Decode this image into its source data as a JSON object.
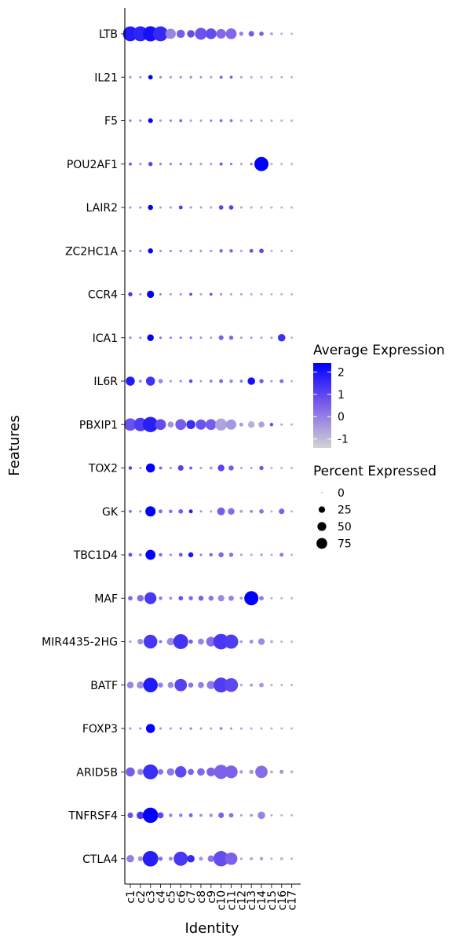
{
  "chart_data": {
    "type": "dotplot",
    "xlabel": "Identity",
    "ylabel": "Features",
    "clusters": [
      "c1",
      "c2",
      "c3",
      "c4",
      "c5",
      "c6",
      "c7",
      "c8",
      "c9",
      "c10",
      "c11",
      "c12",
      "c13",
      "c14",
      "c15",
      "c16",
      "c17"
    ],
    "features": [
      "LTB",
      "IL21",
      "F5",
      "POU2AF1",
      "LAIR2",
      "ZC2HC1A",
      "CCR4",
      "ICA1",
      "IL6R",
      "PBXIP1",
      "TOX2",
      "GK",
      "TBC1D4",
      "MAF",
      "MIR4435-2HG",
      "BATF",
      "FOXP3",
      "ARID5B",
      "TNFRSF4",
      "CTLA4"
    ],
    "color_legend": {
      "title": "Average Expression",
      "ticks": [
        2,
        1,
        0,
        -1
      ],
      "low_color": "#d3d3d3",
      "high_color": "#0000ff",
      "range": [
        -1.4,
        2.4
      ]
    },
    "size_legend": {
      "title": "Percent Expressed",
      "ticks": [
        0,
        25,
        50,
        75
      ]
    },
    "rows": [
      {
        "feature": "LTB",
        "pct": [
          88,
          90,
          92,
          90,
          40,
          25,
          20,
          55,
          45,
          35,
          45,
          5,
          10,
          6,
          2,
          1,
          1
        ],
        "avg": [
          1.9,
          1.7,
          2.1,
          1.6,
          -0.1,
          0.6,
          0.9,
          0.8,
          0.9,
          0.4,
          0.4,
          -0.1,
          0.6,
          0.5,
          -0.6,
          -0.8,
          -0.9
        ]
      },
      {
        "feature": "IL21",
        "pct": [
          1,
          1,
          6,
          1,
          1,
          1,
          1,
          1,
          1,
          2,
          2,
          1,
          1,
          1,
          1,
          1,
          1
        ],
        "avg": [
          -0.1,
          -0.3,
          2.4,
          0.0,
          -0.3,
          -0.1,
          0.1,
          -0.3,
          -0.5,
          0.5,
          0.6,
          -0.5,
          -0.6,
          -0.8,
          -0.7,
          -0.9,
          -0.9
        ]
      },
      {
        "feature": "F5",
        "pct": [
          1,
          1,
          7,
          1,
          1,
          2,
          1,
          1,
          1,
          2,
          2,
          1,
          1,
          1,
          1,
          1,
          1
        ],
        "avg": [
          0.3,
          -0.3,
          2.4,
          -0.5,
          0.1,
          0.4,
          -0.5,
          -0.5,
          0.0,
          0.3,
          0.1,
          -0.6,
          -0.4,
          -0.8,
          -0.8,
          -0.9,
          -0.9
        ]
      },
      {
        "feature": "POU2AF1",
        "pct": [
          2,
          1,
          5,
          1,
          1,
          1,
          1,
          1,
          1,
          2,
          1,
          1,
          1,
          80,
          1,
          1,
          1
        ],
        "avg": [
          0.7,
          -0.3,
          1.1,
          0.1,
          0.1,
          0.2,
          -0.1,
          -0.4,
          -0.5,
          0.8,
          0.3,
          -0.6,
          0.6,
          2.4,
          -0.8,
          -0.9,
          -0.9
        ]
      },
      {
        "feature": "LAIR2",
        "pct": [
          1,
          1,
          8,
          1,
          1,
          4,
          1,
          1,
          1,
          6,
          6,
          1,
          1,
          1,
          1,
          1,
          1
        ],
        "avg": [
          -0.3,
          -0.3,
          2.4,
          -0.5,
          -0.4,
          1.2,
          -0.3,
          -0.5,
          -0.6,
          1.0,
          1.1,
          -0.6,
          -0.7,
          -0.8,
          -0.8,
          -0.9,
          -0.9
        ]
      },
      {
        "feature": "ZC2HC1A",
        "pct": [
          1,
          1,
          8,
          1,
          1,
          1,
          1,
          1,
          1,
          3,
          3,
          1,
          4,
          6,
          1,
          1,
          1
        ],
        "avg": [
          0.2,
          -0.3,
          2.4,
          -0.2,
          0.0,
          0.0,
          0.0,
          -0.3,
          -0.3,
          0.3,
          0.3,
          -0.5,
          0.7,
          1.0,
          -0.8,
          -0.9,
          -0.9
        ]
      },
      {
        "feature": "CCR4",
        "pct": [
          5,
          1,
          18,
          1,
          1,
          1,
          2,
          1,
          2,
          1,
          1,
          1,
          1,
          1,
          1,
          1,
          1
        ],
        "avg": [
          1.3,
          -0.3,
          2.4,
          -0.1,
          -0.5,
          -0.3,
          1.0,
          -0.6,
          0.7,
          -0.2,
          -0.6,
          -0.6,
          -0.8,
          -0.8,
          -0.9,
          -0.9,
          -0.9
        ]
      },
      {
        "feature": "ICA1",
        "pct": [
          1,
          1,
          15,
          1,
          1,
          1,
          1,
          1,
          1,
          7,
          5,
          1,
          1,
          1,
          1,
          20,
          1
        ],
        "avg": [
          0.0,
          -0.3,
          2.4,
          0.3,
          0.0,
          0.2,
          0.5,
          -0.3,
          -0.6,
          0.5,
          0.4,
          -0.5,
          -0.4,
          -0.6,
          -0.4,
          1.5,
          -0.9
        ]
      },
      {
        "feature": "IL6R",
        "pct": [
          30,
          2,
          30,
          6,
          1,
          1,
          3,
          1,
          2,
          4,
          3,
          2,
          20,
          5,
          1,
          4,
          1
        ],
        "avg": [
          1.9,
          -0.3,
          1.4,
          -0.2,
          -0.3,
          0.0,
          1.0,
          -0.5,
          0.0,
          0.4,
          -0.2,
          0.2,
          2.1,
          0.6,
          -0.3,
          0.3,
          -0.9
        ]
      },
      {
        "feature": "PBXIP1",
        "pct": [
          60,
          70,
          95,
          45,
          12,
          45,
          30,
          40,
          45,
          55,
          40,
          4,
          15,
          12,
          3,
          1,
          1
        ],
        "avg": [
          0.8,
          1.2,
          1.8,
          0.9,
          -0.3,
          0.6,
          1.5,
          0.8,
          0.6,
          -0.6,
          -0.4,
          -0.5,
          -0.8,
          -0.6,
          0.9,
          -0.6,
          -0.9
        ]
      },
      {
        "feature": "TOX2",
        "pct": [
          3,
          1,
          30,
          2,
          1,
          10,
          2,
          1,
          2,
          15,
          8,
          1,
          1,
          5,
          1,
          1,
          1
        ],
        "avg": [
          1.0,
          -0.3,
          2.4,
          0.5,
          -0.3,
          1.1,
          0.6,
          -0.5,
          -0.5,
          1.1,
          0.6,
          -0.6,
          -0.6,
          0.7,
          -0.8,
          -0.9,
          -0.9
        ]
      },
      {
        "feature": "GK",
        "pct": [
          2,
          1,
          40,
          4,
          3,
          6,
          4,
          1,
          1,
          22,
          15,
          2,
          2,
          6,
          1,
          10,
          1
        ],
        "avg": [
          0.2,
          -0.3,
          2.4,
          0.3,
          0.3,
          0.6,
          1.8,
          -0.3,
          -0.6,
          0.6,
          0.3,
          -0.5,
          -0.1,
          0.2,
          -0.8,
          0.5,
          -0.9
        ]
      },
      {
        "feature": "TBC1D4",
        "pct": [
          4,
          2,
          38,
          3,
          1,
          4,
          8,
          1,
          3,
          8,
          5,
          1,
          1,
          2,
          1,
          4,
          1
        ],
        "avg": [
          0.8,
          -0.3,
          2.4,
          0.3,
          0.0,
          0.6,
          2.0,
          0.3,
          0.4,
          0.4,
          0.2,
          -0.5,
          -0.6,
          -0.8,
          -0.8,
          0.1,
          -0.9
        ]
      },
      {
        "feature": "MAF",
        "pct": [
          6,
          15,
          55,
          3,
          2,
          6,
          5,
          8,
          8,
          14,
          9,
          2,
          80,
          6,
          1,
          1,
          1
        ],
        "avg": [
          0.4,
          0.3,
          1.3,
          0.1,
          -0.3,
          0.8,
          0.4,
          0.5,
          0.2,
          -0.2,
          -0.1,
          -0.5,
          2.4,
          0.0,
          -0.8,
          -0.9,
          -0.9
        ]
      },
      {
        "feature": "MIR4435-2HG",
        "pct": [
          1,
          10,
          75,
          2,
          20,
          90,
          5,
          12,
          35,
          98,
          80,
          2,
          4,
          15,
          2,
          1,
          1
        ],
        "avg": [
          -0.3,
          -0.3,
          1.3,
          0.3,
          -0.2,
          1.4,
          0.6,
          -0.1,
          0.3,
          1.3,
          1.2,
          -0.6,
          -0.3,
          -0.2,
          -0.8,
          -0.9,
          -0.9
        ]
      },
      {
        "feature": "BATF",
        "pct": [
          15,
          18,
          85,
          8,
          12,
          60,
          8,
          12,
          25,
          90,
          75,
          1,
          2,
          6,
          1,
          1,
          1
        ],
        "avg": [
          -0.1,
          -0.2,
          1.9,
          0.0,
          -0.2,
          1.1,
          0.2,
          0.0,
          0.1,
          1.2,
          1.0,
          -0.5,
          -0.4,
          -0.4,
          -0.8,
          -0.9,
          -0.9
        ]
      },
      {
        "feature": "FOXP3",
        "pct": [
          1,
          1,
          30,
          1,
          1,
          1,
          1,
          1,
          1,
          2,
          1,
          1,
          1,
          1,
          1,
          1,
          1
        ],
        "avg": [
          -0.3,
          -0.3,
          2.4,
          -0.2,
          -0.5,
          -0.2,
          0.3,
          -0.5,
          -0.6,
          -0.1,
          -0.3,
          -0.6,
          -0.8,
          -0.8,
          -0.8,
          -0.9,
          -0.9
        ]
      },
      {
        "feature": "ARID5B",
        "pct": [
          30,
          12,
          90,
          10,
          20,
          50,
          12,
          20,
          28,
          80,
          65,
          3,
          5,
          60,
          2,
          4,
          2
        ],
        "avg": [
          0.6,
          -0.1,
          1.5,
          0.2,
          0.1,
          1.0,
          0.5,
          0.4,
          0.5,
          0.5,
          0.5,
          -0.5,
          -0.4,
          0.3,
          -0.8,
          -0.3,
          -0.9
        ]
      },
      {
        "feature": "TNFRSF4",
        "pct": [
          10,
          20,
          95,
          12,
          3,
          3,
          4,
          2,
          3,
          10,
          6,
          1,
          2,
          20,
          1,
          1,
          1
        ],
        "avg": [
          0.8,
          1.3,
          2.4,
          1.0,
          -0.1,
          0.0,
          0.5,
          -0.3,
          -0.4,
          0.5,
          0.2,
          -0.5,
          -0.4,
          -0.1,
          -0.8,
          -0.9,
          -0.9
        ]
      },
      {
        "feature": "CTLA4",
        "pct": [
          20,
          8,
          98,
          5,
          4,
          80,
          20,
          4,
          15,
          95,
          60,
          1,
          2,
          3,
          1,
          2,
          1
        ],
        "avg": [
          0.0,
          -0.3,
          1.8,
          0.3,
          -0.2,
          1.3,
          1.6,
          -0.3,
          0.2,
          0.9,
          0.5,
          -0.5,
          -0.5,
          -0.6,
          -0.8,
          -0.9,
          -0.9
        ]
      }
    ]
  }
}
